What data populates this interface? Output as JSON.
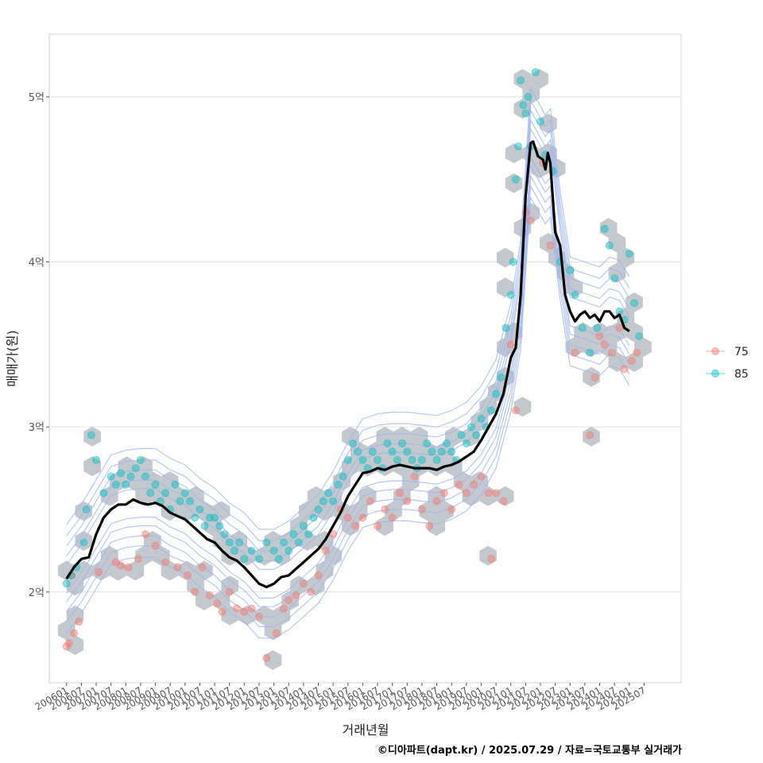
{
  "chart_data": {
    "type": "scatter",
    "title": "",
    "xlabel": "거래년월",
    "ylabel": "매매가(원)",
    "ylim": [
      1.45,
      5.38
    ],
    "y_ticks": [
      {
        "value": 2,
        "label": "2억"
      },
      {
        "value": 3,
        "label": "3억"
      },
      {
        "value": 4,
        "label": "4억"
      },
      {
        "value": 5,
        "label": "5억"
      }
    ],
    "x_range": [
      "2005-06",
      "2026-10"
    ],
    "x_ticks": [
      "200601",
      "200607",
      "200701",
      "200707",
      "200801",
      "200807",
      "200901",
      "200907",
      "201001",
      "201007",
      "201101",
      "201107",
      "201201",
      "201207",
      "201301",
      "201307",
      "201401",
      "201407",
      "201501",
      "201507",
      "201601",
      "201607",
      "201701",
      "201707",
      "201801",
      "201807",
      "201901",
      "201907",
      "202001",
      "202007",
      "202101",
      "202107",
      "202201",
      "202207",
      "202301",
      "202307",
      "202401",
      "202407",
      "202501",
      "202507"
    ],
    "grid": "horizontal",
    "legend_position": "right",
    "series": [
      {
        "name": "75",
        "color": "#F8766D",
        "points": [
          [
            "2006-01",
            1.67
          ],
          [
            "2006-02",
            1.69
          ],
          [
            "2006-04",
            1.75
          ],
          [
            "2006-06",
            1.82
          ],
          [
            "2006-03",
            2.1
          ],
          [
            "2007-02",
            2.12
          ],
          [
            "2007-09",
            2.18
          ],
          [
            "2007-11",
            2.16
          ],
          [
            "2008-02",
            2.15
          ],
          [
            "2008-06",
            2.2
          ],
          [
            "2008-09",
            2.35
          ],
          [
            "2009-01",
            2.28
          ],
          [
            "2009-05",
            2.18
          ],
          [
            "2009-10",
            2.15
          ],
          [
            "2010-02",
            2.1
          ],
          [
            "2010-05",
            2.0
          ],
          [
            "2010-08",
            2.15
          ],
          [
            "2010-11",
            1.98
          ],
          [
            "2011-02",
            1.93
          ],
          [
            "2011-04",
            1.88
          ],
          [
            "2011-07",
            2.0
          ],
          [
            "2011-10",
            1.9
          ],
          [
            "2012-01",
            1.88
          ],
          [
            "2012-04",
            1.9
          ],
          [
            "2012-07",
            1.85
          ],
          [
            "2012-10",
            1.6
          ],
          [
            "2013-02",
            1.75
          ],
          [
            "2013-05",
            1.9
          ],
          [
            "2013-07",
            1.95
          ],
          [
            "2013-10",
            1.98
          ],
          [
            "2014-01",
            2.05
          ],
          [
            "2014-04",
            2.0
          ],
          [
            "2014-07",
            2.1
          ],
          [
            "2014-10",
            2.25
          ],
          [
            "2015-01",
            2.35
          ],
          [
            "2015-04",
            2.5
          ],
          [
            "2015-07",
            2.45
          ],
          [
            "2015-10",
            2.4
          ],
          [
            "2016-01",
            2.45
          ],
          [
            "2016-04",
            2.55
          ],
          [
            "2016-07",
            2.4
          ],
          [
            "2016-10",
            2.5
          ],
          [
            "2017-01",
            2.45
          ],
          [
            "2017-04",
            2.6
          ],
          [
            "2017-07",
            2.55
          ],
          [
            "2017-10",
            2.7
          ],
          [
            "2018-01",
            2.5
          ],
          [
            "2018-04",
            2.4
          ],
          [
            "2018-07",
            2.55
          ],
          [
            "2018-10",
            2.6
          ],
          [
            "2019-01",
            2.5
          ],
          [
            "2019-04",
            2.65
          ],
          [
            "2019-07",
            2.6
          ],
          [
            "2019-10",
            2.65
          ],
          [
            "2020-01",
            2.7
          ],
          [
            "2020-04",
            2.6
          ],
          [
            "2020-07",
            2.6
          ],
          [
            "2020-10",
            2.55
          ],
          [
            "2020-05",
            2.2
          ],
          [
            "2021-01",
            3.5
          ],
          [
            "2021-03",
            3.1
          ],
          [
            "2021-07",
            4.3
          ],
          [
            "2021-09",
            4.25
          ],
          [
            "2022-02",
            4.6
          ],
          [
            "2022-05",
            4.1
          ],
          [
            "2023-03",
            3.45
          ],
          [
            "2023-09",
            2.95
          ],
          [
            "2023-11",
            3.3
          ],
          [
            "2024-01",
            3.55
          ],
          [
            "2024-03",
            3.5
          ],
          [
            "2024-06",
            3.45
          ],
          [
            "2024-09",
            3.6
          ],
          [
            "2024-11",
            3.35
          ],
          [
            "2025-02",
            3.4
          ],
          [
            "2025-04",
            3.45
          ]
        ]
      },
      {
        "name": "85",
        "color": "#00BFC4",
        "points": [
          [
            "2006-01",
            2.05
          ],
          [
            "2006-03",
            2.1
          ],
          [
            "2006-05",
            2.15
          ],
          [
            "2006-08",
            2.3
          ],
          [
            "2006-09",
            2.5
          ],
          [
            "2006-11",
            2.95
          ],
          [
            "2007-01",
            2.8
          ],
          [
            "2007-04",
            2.6
          ],
          [
            "2007-07",
            2.7
          ],
          [
            "2007-09",
            2.65
          ],
          [
            "2007-11",
            2.72
          ],
          [
            "2008-01",
            2.65
          ],
          [
            "2008-03",
            2.7
          ],
          [
            "2008-05",
            2.75
          ],
          [
            "2008-07",
            2.8
          ],
          [
            "2008-09",
            2.7
          ],
          [
            "2008-11",
            2.6
          ],
          [
            "2009-01",
            2.65
          ],
          [
            "2009-03",
            2.55
          ],
          [
            "2009-05",
            2.6
          ],
          [
            "2009-07",
            2.5
          ],
          [
            "2009-09",
            2.65
          ],
          [
            "2009-11",
            2.55
          ],
          [
            "2010-01",
            2.6
          ],
          [
            "2010-03",
            2.55
          ],
          [
            "2010-05",
            2.45
          ],
          [
            "2010-07",
            2.5
          ],
          [
            "2010-09",
            2.4
          ],
          [
            "2010-11",
            2.45
          ],
          [
            "2011-01",
            2.45
          ],
          [
            "2011-03",
            2.4
          ],
          [
            "2011-05",
            2.35
          ],
          [
            "2011-07",
            2.3
          ],
          [
            "2011-09",
            2.25
          ],
          [
            "2011-11",
            2.3
          ],
          [
            "2012-01",
            2.2
          ],
          [
            "2012-04",
            2.25
          ],
          [
            "2012-07",
            2.2
          ],
          [
            "2012-10",
            2.3
          ],
          [
            "2013-01",
            2.25
          ],
          [
            "2013-03",
            2.2
          ],
          [
            "2013-05",
            2.3
          ],
          [
            "2013-07",
            2.25
          ],
          [
            "2013-09",
            2.35
          ],
          [
            "2013-11",
            2.3
          ],
          [
            "2014-01",
            2.4
          ],
          [
            "2014-03",
            2.35
          ],
          [
            "2014-05",
            2.45
          ],
          [
            "2014-07",
            2.5
          ],
          [
            "2014-09",
            2.55
          ],
          [
            "2014-11",
            2.6
          ],
          [
            "2015-01",
            2.55
          ],
          [
            "2015-03",
            2.65
          ],
          [
            "2015-05",
            2.7
          ],
          [
            "2015-07",
            2.8
          ],
          [
            "2015-09",
            2.9
          ],
          [
            "2015-11",
            2.85
          ],
          [
            "2016-01",
            2.8
          ],
          [
            "2016-03",
            2.75
          ],
          [
            "2016-05",
            2.85
          ],
          [
            "2016-07",
            2.8
          ],
          [
            "2016-09",
            2.75
          ],
          [
            "2016-11",
            2.9
          ],
          [
            "2017-01",
            2.85
          ],
          [
            "2017-03",
            2.8
          ],
          [
            "2017-05",
            2.9
          ],
          [
            "2017-07",
            2.85
          ],
          [
            "2017-09",
            2.8
          ],
          [
            "2017-11",
            2.75
          ],
          [
            "2018-01",
            2.8
          ],
          [
            "2018-03",
            2.9
          ],
          [
            "2018-05",
            2.85
          ],
          [
            "2018-07",
            2.8
          ],
          [
            "2018-09",
            2.85
          ],
          [
            "2018-11",
            2.9
          ],
          [
            "2019-01",
            2.85
          ],
          [
            "2019-03",
            2.8
          ],
          [
            "2019-05",
            2.95
          ],
          [
            "2019-07",
            2.9
          ],
          [
            "2019-09",
            3.0
          ],
          [
            "2019-11",
            2.95
          ],
          [
            "2020-01",
            3.05
          ],
          [
            "2020-03",
            3.0
          ],
          [
            "2020-05",
            3.1
          ],
          [
            "2020-07",
            3.2
          ],
          [
            "2020-09",
            3.3
          ],
          [
            "2020-11",
            3.6
          ],
          [
            "2021-01",
            3.8
          ],
          [
            "2021-02",
            4.0
          ],
          [
            "2021-03",
            4.5
          ],
          [
            "2021-04",
            4.7
          ],
          [
            "2021-05",
            5.1
          ],
          [
            "2021-06",
            4.95
          ],
          [
            "2021-07",
            4.9
          ],
          [
            "2021-08",
            5.0
          ],
          [
            "2021-09",
            4.7
          ],
          [
            "2021-11",
            5.15
          ],
          [
            "2022-01",
            4.85
          ],
          [
            "2022-03",
            4.65
          ],
          [
            "2022-06",
            4.55
          ],
          [
            "2022-09",
            4.0
          ],
          [
            "2023-01",
            3.95
          ],
          [
            "2023-03",
            3.8
          ],
          [
            "2023-06",
            3.6
          ],
          [
            "2023-09",
            3.45
          ],
          [
            "2023-12",
            3.6
          ],
          [
            "2024-03",
            4.2
          ],
          [
            "2024-05",
            4.1
          ],
          [
            "2024-07",
            3.9
          ],
          [
            "2024-09",
            3.7
          ],
          [
            "2024-11",
            3.65
          ],
          [
            "2025-01",
            4.05
          ],
          [
            "2025-03",
            3.75
          ],
          [
            "2025-05",
            3.55
          ]
        ]
      }
    ],
    "trend_line": {
      "color": "#000000",
      "points": [
        [
          "2006-01",
          2.08
        ],
        [
          "2006-04",
          2.15
        ],
        [
          "2006-07",
          2.2
        ],
        [
          "2006-10",
          2.21
        ],
        [
          "2007-01",
          2.35
        ],
        [
          "2007-04",
          2.45
        ],
        [
          "2007-07",
          2.5
        ],
        [
          "2007-10",
          2.53
        ],
        [
          "2008-01",
          2.53
        ],
        [
          "2008-04",
          2.56
        ],
        [
          "2008-07",
          2.54
        ],
        [
          "2008-10",
          2.53
        ],
        [
          "2009-01",
          2.54
        ],
        [
          "2009-04",
          2.52
        ],
        [
          "2009-07",
          2.48
        ],
        [
          "2009-10",
          2.46
        ],
        [
          "2010-01",
          2.44
        ],
        [
          "2010-04",
          2.4
        ],
        [
          "2010-07",
          2.36
        ],
        [
          "2010-10",
          2.32
        ],
        [
          "2011-01",
          2.3
        ],
        [
          "2011-04",
          2.25
        ],
        [
          "2011-07",
          2.21
        ],
        [
          "2011-10",
          2.19
        ],
        [
          "2012-01",
          2.15
        ],
        [
          "2012-04",
          2.1
        ],
        [
          "2012-07",
          2.05
        ],
        [
          "2012-10",
          2.03
        ],
        [
          "2013-01",
          2.05
        ],
        [
          "2013-04",
          2.09
        ],
        [
          "2013-07",
          2.1
        ],
        [
          "2013-10",
          2.14
        ],
        [
          "2014-01",
          2.18
        ],
        [
          "2014-04",
          2.22
        ],
        [
          "2014-07",
          2.26
        ],
        [
          "2014-10",
          2.32
        ],
        [
          "2015-01",
          2.4
        ],
        [
          "2015-04",
          2.48
        ],
        [
          "2015-07",
          2.58
        ],
        [
          "2015-10",
          2.65
        ],
        [
          "2016-01",
          2.72
        ],
        [
          "2016-04",
          2.73
        ],
        [
          "2016-07",
          2.75
        ],
        [
          "2016-10",
          2.74
        ],
        [
          "2017-01",
          2.76
        ],
        [
          "2017-04",
          2.77
        ],
        [
          "2017-07",
          2.76
        ],
        [
          "2017-10",
          2.75
        ],
        [
          "2018-01",
          2.75
        ],
        [
          "2018-04",
          2.75
        ],
        [
          "2018-07",
          2.74
        ],
        [
          "2018-10",
          2.76
        ],
        [
          "2019-01",
          2.77
        ],
        [
          "2019-04",
          2.79
        ],
        [
          "2019-07",
          2.82
        ],
        [
          "2019-10",
          2.85
        ],
        [
          "2020-01",
          2.92
        ],
        [
          "2020-04",
          3.0
        ],
        [
          "2020-07",
          3.08
        ],
        [
          "2020-10",
          3.2
        ],
        [
          "2021-01",
          3.42
        ],
        [
          "2021-03",
          3.48
        ],
        [
          "2021-05",
          3.8
        ],
        [
          "2021-07",
          4.4
        ],
        [
          "2021-09",
          4.72
        ],
        [
          "2021-10",
          4.73
        ],
        [
          "2021-12",
          4.64
        ],
        [
          "2022-02",
          4.62
        ],
        [
          "2022-03",
          4.56
        ],
        [
          "2022-04",
          4.66
        ],
        [
          "2022-05",
          4.6
        ],
        [
          "2022-07",
          4.18
        ],
        [
          "2022-09",
          4.1
        ],
        [
          "2022-11",
          3.8
        ],
        [
          "2023-01",
          3.7
        ],
        [
          "2023-03",
          3.64
        ],
        [
          "2023-05",
          3.68
        ],
        [
          "2023-07",
          3.7
        ],
        [
          "2023-09",
          3.66
        ],
        [
          "2023-11",
          3.68
        ],
        [
          "2024-01",
          3.64
        ],
        [
          "2024-03",
          3.7
        ],
        [
          "2024-05",
          3.7
        ],
        [
          "2024-07",
          3.66
        ],
        [
          "2024-09",
          3.68
        ],
        [
          "2024-11",
          3.6
        ],
        [
          "2025-01",
          3.58
        ]
      ]
    },
    "hex_fill_color": "#B8BEC6",
    "contour_color": "#9DB3F0"
  },
  "caption": "©디아파트(dapt.kr) / 2025.07.29 / 자료=국토교통부 실거래가"
}
